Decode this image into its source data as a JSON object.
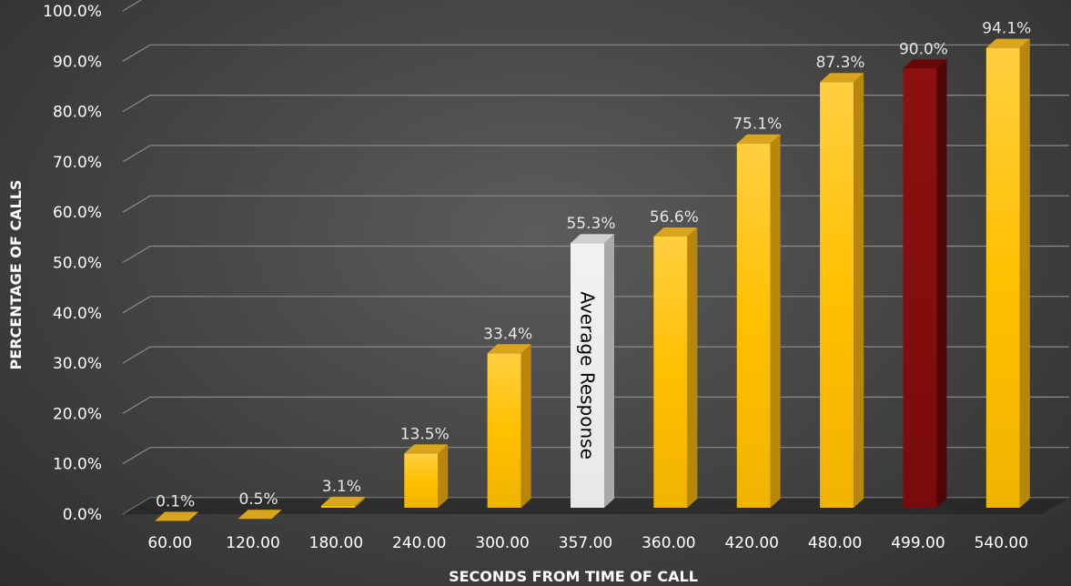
{
  "chart_data": {
    "type": "bar",
    "xlabel": "SECONDS FROM TIME OF CALL",
    "ylabel": "PERCENTAGE OF CALLS",
    "ylim": [
      0,
      100
    ],
    "yticks": [
      "0.0%",
      "10.0%",
      "20.0%",
      "30.0%",
      "40.0%",
      "50.0%",
      "60.0%",
      "70.0%",
      "80.0%",
      "90.0%",
      "100.0%"
    ],
    "grid": true,
    "legend": "none",
    "categories": [
      "60.00",
      "120.00",
      "180.00",
      "240.00",
      "300.00",
      "357.00",
      "360.00",
      "420.00",
      "480.00",
      "499.00",
      "540.00"
    ],
    "values": [
      0.1,
      0.5,
      3.1,
      13.5,
      33.4,
      55.3,
      56.6,
      75.1,
      87.3,
      90.0,
      94.1
    ],
    "data_labels": [
      "0.1%",
      "0.5%",
      "3.1%",
      "13.5%",
      "33.4%",
      "55.3%",
      "56.6%",
      "75.1%",
      "87.3%",
      "90.0%",
      "94.1%"
    ],
    "colors": [
      "#ffc000",
      "#ffc000",
      "#ffc000",
      "#ffc000",
      "#ffc000",
      "#eeeeee",
      "#ffc000",
      "#ffc000",
      "#ffc000",
      "#8b0d0d",
      "#ffc000"
    ],
    "annotations": [
      {
        "category": "357.00",
        "text": "Average Response"
      }
    ]
  }
}
